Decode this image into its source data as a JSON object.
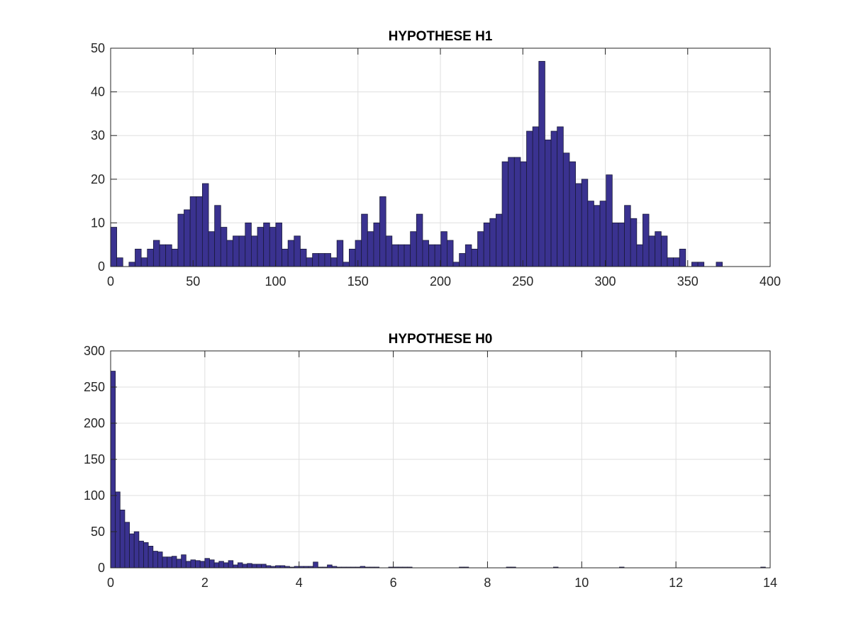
{
  "figure": {
    "background": "#ffffff"
  },
  "chart_data": [
    {
      "type": "bar",
      "title": "HYPOTHESE H1",
      "xlabel": "",
      "ylabel": "",
      "xlim": [
        0,
        400
      ],
      "ylim": [
        0,
        50
      ],
      "xticks": [
        0,
        50,
        100,
        150,
        200,
        250,
        300,
        350,
        400
      ],
      "yticks": [
        0,
        10,
        20,
        30,
        40,
        50
      ],
      "xtick_labels": [
        "0",
        "50",
        "100",
        "150",
        "200",
        "250",
        "300",
        "350",
        "400"
      ],
      "ytick_labels": [
        "0",
        "10",
        "20",
        "30",
        "40",
        "50"
      ],
      "grid": true,
      "bar_color": "#3a3290",
      "edge_color": "#1a1a3a",
      "bin_start": 0,
      "bin_width": 3.71,
      "values": [
        9,
        2,
        0,
        1,
        4,
        2,
        4,
        6,
        5,
        5,
        4,
        12,
        13,
        16,
        16,
        19,
        8,
        14,
        9,
        6,
        7,
        7,
        10,
        7,
        9,
        10,
        9,
        10,
        4,
        6,
        7,
        4,
        2,
        3,
        3,
        3,
        2,
        6,
        1,
        4,
        6,
        12,
        8,
        10,
        16,
        7,
        5,
        5,
        5,
        8,
        12,
        6,
        5,
        5,
        8,
        6,
        1,
        3,
        5,
        4,
        8,
        10,
        11,
        12,
        24,
        25,
        25,
        24,
        31,
        32,
        47,
        29,
        31,
        32,
        26,
        24,
        19,
        20,
        15,
        14,
        15,
        21,
        10,
        10,
        14,
        11,
        5,
        12,
        7,
        8,
        7,
        2,
        2,
        4,
        0,
        1,
        1,
        0,
        0,
        1
      ]
    },
    {
      "type": "bar",
      "title": "HYPOTHESE H0",
      "xlabel": "",
      "ylabel": "",
      "xlim": [
        0,
        14
      ],
      "ylim": [
        0,
        300
      ],
      "xticks": [
        0,
        2,
        4,
        6,
        8,
        10,
        12,
        14
      ],
      "yticks": [
        0,
        50,
        100,
        150,
        200,
        250,
        300
      ],
      "xtick_labels": [
        "0",
        "2",
        "4",
        "6",
        "8",
        "10",
        "12",
        "14"
      ],
      "ytick_labels": [
        "0",
        "50",
        "100",
        "150",
        "200",
        "250",
        "300"
      ],
      "grid": true,
      "bar_color": "#3a3290",
      "edge_color": "#1a1a3a",
      "bin_start": 0,
      "bin_width": 0.1,
      "values": [
        272,
        105,
        80,
        63,
        47,
        50,
        37,
        35,
        30,
        23,
        22,
        15,
        15,
        16,
        12,
        18,
        9,
        11,
        10,
        9,
        13,
        11,
        7,
        9,
        7,
        10,
        4,
        7,
        5,
        6,
        5,
        5,
        5,
        3,
        2,
        3,
        3,
        2,
        1,
        2,
        2,
        2,
        2,
        8,
        1,
        1,
        4,
        2,
        1,
        1,
        1,
        1,
        1,
        2,
        1,
        1,
        1,
        0,
        0,
        1,
        1,
        1,
        1,
        1,
        0,
        0,
        0,
        0,
        0,
        0,
        0,
        0,
        0,
        0,
        1,
        1,
        0,
        0,
        0,
        0,
        0,
        0,
        0,
        0,
        1,
        1,
        0,
        0,
        0,
        0,
        0,
        0,
        0,
        0,
        1,
        0,
        0,
        0,
        0,
        0,
        0,
        0,
        0,
        0,
        0,
        0,
        0,
        0,
        1,
        0,
        0,
        0,
        0,
        0,
        0,
        0,
        0,
        0,
        0,
        0,
        0,
        0,
        0,
        0,
        0,
        0,
        0,
        0,
        0,
        0,
        0,
        0,
        0,
        0,
        0,
        0,
        0,
        0,
        1
      ]
    }
  ]
}
